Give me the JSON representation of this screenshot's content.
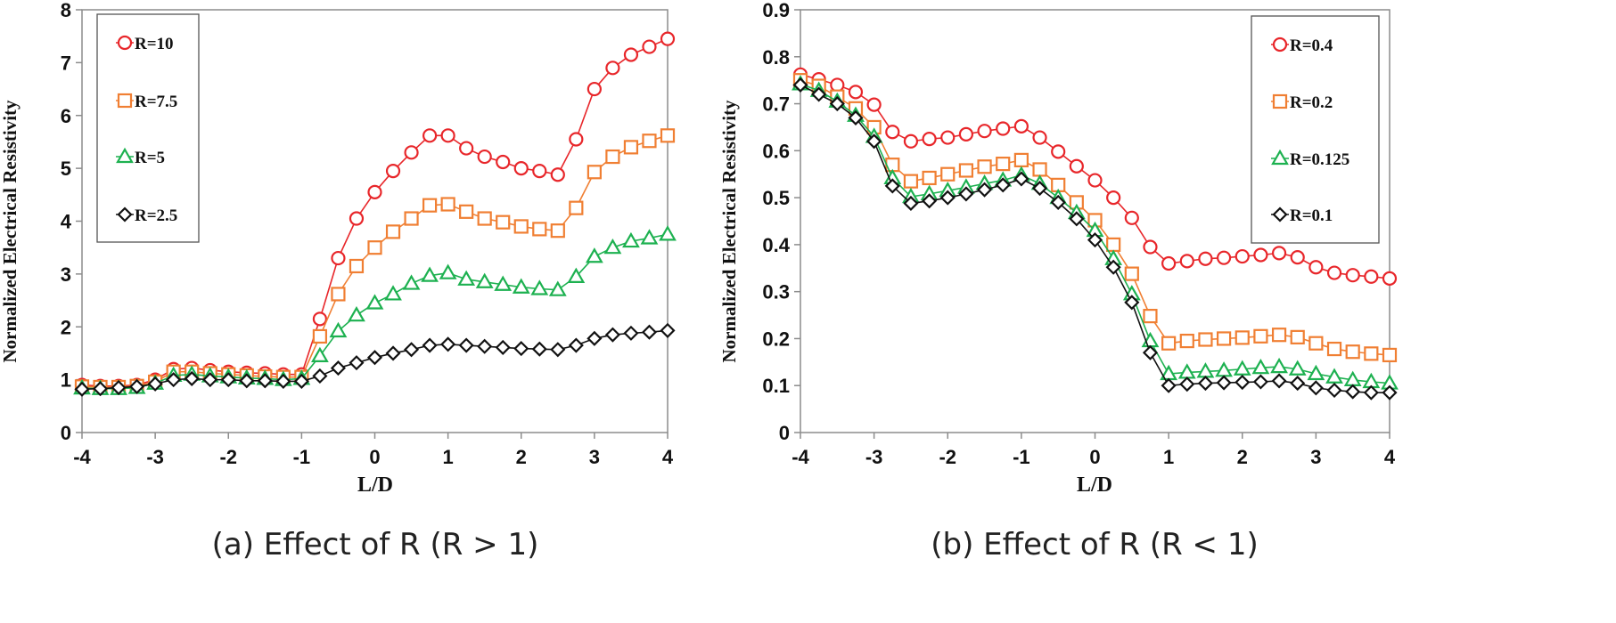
{
  "chart_data": [
    {
      "type": "line",
      "caption": "(a) Effect of R (R > 1)",
      "xlabel": "L/D",
      "ylabel": "Normalized Electrical Resistivity",
      "xlim": [
        -4,
        4
      ],
      "ylim": [
        0,
        8
      ],
      "xticks": [
        "-4",
        "-3",
        "-2",
        "-1",
        "0",
        "1",
        "2",
        "3",
        "4"
      ],
      "yticks": [
        "0",
        "1",
        "2",
        "3",
        "4",
        "5",
        "6",
        "7",
        "8"
      ],
      "grid": false,
      "legend_position": "top-left",
      "x": [
        -4,
        -3.75,
        -3.5,
        -3.25,
        -3,
        -2.75,
        -2.5,
        -2.25,
        -2,
        -1.75,
        -1.5,
        -1.25,
        -1,
        -0.75,
        -0.5,
        -0.25,
        0,
        0.25,
        0.5,
        0.75,
        1,
        1.25,
        1.5,
        1.75,
        2,
        2.25,
        2.5,
        2.75,
        3,
        3.25,
        3.5,
        3.75,
        4
      ],
      "series": [
        {
          "name": "R=10",
          "color": "#e8262a",
          "marker": "circle",
          "values": [
            0.9,
            0.88,
            0.88,
            0.9,
            1.0,
            1.2,
            1.22,
            1.18,
            1.15,
            1.13,
            1.12,
            1.1,
            1.1,
            2.15,
            3.3,
            4.05,
            4.55,
            4.95,
            5.3,
            5.62,
            5.62,
            5.38,
            5.22,
            5.12,
            5.0,
            4.95,
            4.88,
            5.55,
            6.5,
            6.9,
            7.15,
            7.3,
            7.45
          ]
        },
        {
          "name": "R=7.5",
          "color": "#f07f33",
          "marker": "square",
          "values": [
            0.87,
            0.86,
            0.86,
            0.88,
            0.96,
            1.15,
            1.15,
            1.12,
            1.1,
            1.08,
            1.06,
            1.05,
            1.05,
            1.82,
            2.62,
            3.15,
            3.5,
            3.8,
            4.05,
            4.3,
            4.32,
            4.18,
            4.05,
            3.98,
            3.9,
            3.85,
            3.82,
            4.25,
            4.93,
            5.22,
            5.4,
            5.52,
            5.62
          ]
        },
        {
          "name": "R=5",
          "color": "#1db150",
          "marker": "triangle",
          "values": [
            0.84,
            0.83,
            0.83,
            0.85,
            0.93,
            1.08,
            1.1,
            1.07,
            1.05,
            1.03,
            1.02,
            1.0,
            1.02,
            1.45,
            1.92,
            2.22,
            2.45,
            2.62,
            2.82,
            2.97,
            3.02,
            2.9,
            2.85,
            2.8,
            2.75,
            2.72,
            2.7,
            2.95,
            3.33,
            3.5,
            3.62,
            3.68,
            3.75
          ]
        },
        {
          "name": "R=2.5",
          "color": "#111111",
          "marker": "diamond",
          "values": [
            0.82,
            0.83,
            0.85,
            0.87,
            0.92,
            1.0,
            1.02,
            1.0,
            1.0,
            0.98,
            0.98,
            0.97,
            0.97,
            1.07,
            1.22,
            1.32,
            1.42,
            1.5,
            1.57,
            1.65,
            1.67,
            1.65,
            1.63,
            1.61,
            1.59,
            1.58,
            1.57,
            1.65,
            1.78,
            1.85,
            1.88,
            1.9,
            1.93
          ]
        }
      ]
    },
    {
      "type": "line",
      "caption": "(b) Effect of R (R < 1)",
      "xlabel": "L/D",
      "ylabel": "Normalized Electrical Resistivity",
      "xlim": [
        -4,
        4
      ],
      "ylim": [
        0,
        0.9
      ],
      "xticks": [
        "-4",
        "-3",
        "-2",
        "-1",
        "0",
        "1",
        "2",
        "3",
        "4"
      ],
      "yticks": [
        "0",
        "0.1",
        "0.2",
        "0.3",
        "0.4",
        "0.5",
        "0.6",
        "0.7",
        "0.8",
        "0.9"
      ],
      "grid": false,
      "legend_position": "top-right",
      "x": [
        -4,
        -3.75,
        -3.5,
        -3.25,
        -3,
        -2.75,
        -2.5,
        -2.25,
        -2,
        -1.75,
        -1.5,
        -1.25,
        -1,
        -0.75,
        -0.5,
        -0.25,
        0,
        0.25,
        0.5,
        0.75,
        1,
        1.25,
        1.5,
        1.75,
        2,
        2.25,
        2.5,
        2.75,
        3,
        3.25,
        3.5,
        3.75,
        4
      ],
      "series": [
        {
          "name": "R=0.4",
          "color": "#e8262a",
          "marker": "circle",
          "values": [
            0.762,
            0.752,
            0.74,
            0.725,
            0.698,
            0.64,
            0.62,
            0.625,
            0.628,
            0.635,
            0.642,
            0.647,
            0.652,
            0.628,
            0.598,
            0.567,
            0.537,
            0.5,
            0.457,
            0.395,
            0.36,
            0.365,
            0.37,
            0.372,
            0.375,
            0.378,
            0.382,
            0.373,
            0.352,
            0.34,
            0.335,
            0.332,
            0.328
          ]
        },
        {
          "name": "R=0.2",
          "color": "#f07f33",
          "marker": "square",
          "values": [
            0.75,
            0.738,
            0.715,
            0.69,
            0.65,
            0.57,
            0.535,
            0.542,
            0.55,
            0.558,
            0.566,
            0.572,
            0.58,
            0.56,
            0.527,
            0.49,
            0.452,
            0.4,
            0.338,
            0.248,
            0.19,
            0.195,
            0.198,
            0.2,
            0.202,
            0.205,
            0.208,
            0.203,
            0.19,
            0.178,
            0.172,
            0.168,
            0.165
          ]
        },
        {
          "name": "R=0.125",
          "color": "#1db150",
          "marker": "triangle",
          "values": [
            0.742,
            0.728,
            0.705,
            0.675,
            0.63,
            0.542,
            0.502,
            0.508,
            0.515,
            0.522,
            0.53,
            0.537,
            0.548,
            0.53,
            0.5,
            0.468,
            0.43,
            0.37,
            0.295,
            0.195,
            0.125,
            0.128,
            0.13,
            0.132,
            0.135,
            0.138,
            0.14,
            0.135,
            0.125,
            0.118,
            0.112,
            0.108,
            0.105
          ]
        },
        {
          "name": "R=0.1",
          "color": "#111111",
          "marker": "diamond",
          "values": [
            0.74,
            0.72,
            0.7,
            0.67,
            0.62,
            0.525,
            0.488,
            0.493,
            0.5,
            0.508,
            0.517,
            0.527,
            0.54,
            0.52,
            0.49,
            0.455,
            0.41,
            0.352,
            0.277,
            0.17,
            0.1,
            0.103,
            0.105,
            0.106,
            0.107,
            0.108,
            0.11,
            0.105,
            0.095,
            0.09,
            0.087,
            0.085,
            0.085
          ]
        }
      ]
    }
  ]
}
